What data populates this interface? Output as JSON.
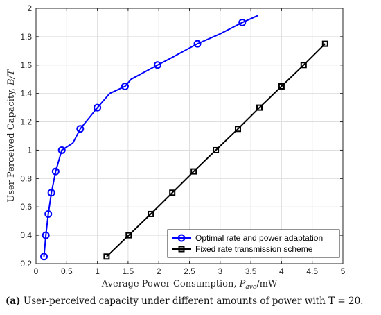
{
  "caption": {
    "tag": "(a)",
    "text": "User-perceived capacity under different amounts of power with T = 20."
  },
  "chart_data": {
    "type": "line",
    "xlabel": "Average Power Consumption, P_ave/mW",
    "ylabel": "User Perceived Capacity, B/T",
    "xlim": [
      0,
      5
    ],
    "ylim": [
      0.2,
      2
    ],
    "xticks": [
      "0",
      "0.5",
      "1",
      "1.5",
      "2",
      "2.5",
      "3",
      "3.5",
      "4",
      "4.5",
      "5"
    ],
    "yticks": [
      "0.2",
      "0.4",
      "0.6",
      "0.8",
      "1",
      "1.2",
      "1.4",
      "1.6",
      "1.8",
      "2"
    ],
    "grid": true,
    "legend_position": "bottom-right",
    "series": [
      {
        "name": "Optimal rate and power adaptation",
        "color": "#0000ff",
        "marker": "circle",
        "x": [
          0.13,
          0.16,
          0.2,
          0.25,
          0.32,
          0.42,
          0.6,
          0.72,
          1.0,
          1.2,
          1.45,
          1.55,
          1.98,
          2.2,
          2.63,
          3.0,
          3.36,
          3.62
        ],
        "y": [
          0.25,
          0.4,
          0.55,
          0.7,
          0.85,
          1.0,
          1.05,
          1.15,
          1.3,
          1.4,
          1.45,
          1.5,
          1.6,
          1.65,
          1.75,
          1.82,
          1.9,
          1.95
        ],
        "marker_x": [
          0.13,
          0.16,
          0.2,
          0.25,
          0.32,
          0.42,
          0.72,
          1.0,
          1.45,
          1.98,
          2.63,
          3.36
        ],
        "marker_y": [
          0.25,
          0.4,
          0.55,
          0.7,
          0.85,
          1.0,
          1.15,
          1.3,
          1.45,
          1.6,
          1.75,
          1.9
        ]
      },
      {
        "name": "Fixed rate transmission scheme",
        "color": "#000000",
        "marker": "square",
        "x": [
          1.15,
          1.51,
          1.87,
          2.22,
          2.57,
          2.93,
          3.29,
          3.64,
          4.0,
          4.36,
          4.71
        ],
        "y": [
          0.25,
          0.4,
          0.55,
          0.7,
          0.85,
          1.0,
          1.15,
          1.3,
          1.45,
          1.6,
          1.75
        ],
        "marker_x": [
          1.15,
          1.51,
          1.87,
          2.22,
          2.57,
          2.93,
          3.29,
          3.64,
          4.0,
          4.36,
          4.71
        ],
        "marker_y": [
          0.25,
          0.4,
          0.55,
          0.7,
          0.85,
          1.0,
          1.15,
          1.3,
          1.45,
          1.6,
          1.75
        ]
      }
    ]
  }
}
